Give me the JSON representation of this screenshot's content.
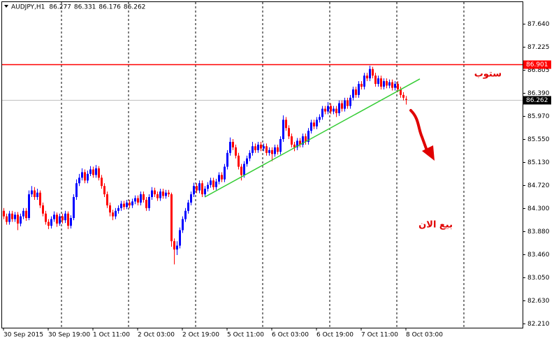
{
  "chart_data": {
    "type": "candlestick",
    "title": "AUDJPY,H1",
    "categories": [
      "30 Sep 2015",
      null,
      null,
      null,
      null,
      null,
      null,
      null,
      null,
      null,
      null,
      null,
      null,
      null,
      null,
      null,
      "30 Sep 19:00",
      null,
      null,
      null,
      null,
      null,
      null,
      null,
      null,
      null,
      null,
      null,
      null,
      null,
      null,
      null,
      "1 Oct 11:00",
      null,
      null,
      null,
      null,
      null,
      null,
      null,
      null,
      null,
      null,
      null,
      null,
      null,
      null,
      null,
      "2 Oct 03:00",
      null,
      null,
      null,
      null,
      null,
      null,
      null,
      null,
      null,
      null,
      null,
      null,
      null,
      null,
      null,
      "2 Oct 19:00",
      null,
      null,
      null,
      null,
      null,
      null,
      null,
      null,
      null,
      null,
      null,
      null,
      null,
      null,
      null,
      "5 Oct 11:00",
      null,
      null,
      null,
      null,
      null,
      null,
      null,
      null,
      null,
      null,
      null,
      null,
      null,
      null,
      null,
      "6 Oct 03:00",
      null,
      null,
      null,
      null,
      null,
      null,
      null,
      null,
      null,
      null,
      null,
      null,
      null,
      null,
      null,
      "6 Oct 19:00",
      null,
      null,
      null,
      null,
      null,
      null,
      null,
      null,
      null,
      null,
      null,
      null,
      null,
      null,
      null,
      "7 Oct 11:00",
      null,
      null,
      null,
      null,
      null,
      null,
      null,
      null,
      null,
      null,
      null,
      null,
      null,
      null,
      null,
      "8 Oct 03:00"
    ],
    "open": [
      84.25,
      84.15,
      84.05,
      84.2,
      84.1,
      84.18,
      84.02,
      84.15,
      84.25,
      84.12,
      84.55,
      84.62,
      84.5,
      84.58,
      84.35,
      84.2,
      84.05,
      83.98,
      84.1,
      84.18,
      84.02,
      84.15,
      84.08,
      84.2,
      83.98,
      84.12,
      84.5,
      84.75,
      84.85,
      84.95,
      84.8,
      84.92,
      85.0,
      84.9,
      85.02,
      84.85,
      84.7,
      84.55,
      84.35,
      84.22,
      84.15,
      84.25,
      84.3,
      84.38,
      84.32,
      84.4,
      84.35,
      84.42,
      84.48,
      84.4,
      84.55,
      84.45,
      84.3,
      84.5,
      84.62,
      84.55,
      84.48,
      84.6,
      84.52,
      84.58,
      84.55,
      83.7,
      83.55,
      83.62,
      83.9,
      84.1,
      84.25,
      84.4,
      84.55,
      84.7,
      84.62,
      84.75,
      84.55,
      84.65,
      84.72,
      84.8,
      84.68,
      84.78,
      84.9,
      84.82,
      85.05,
      85.3,
      85.5,
      85.4,
      85.25,
      85.05,
      84.9,
      85.1,
      85.2,
      85.3,
      85.42,
      85.35,
      85.45,
      85.38,
      85.42,
      85.3,
      85.35,
      85.28,
      85.4,
      85.32,
      85.55,
      85.9,
      85.75,
      85.6,
      85.45,
      85.4,
      85.52,
      85.45,
      85.6,
      85.5,
      85.7,
      85.85,
      85.78,
      85.9,
      85.95,
      86.1,
      86.05,
      86.15,
      86.05,
      86.1,
      86.02,
      86.2,
      86.1,
      86.25,
      86.15,
      86.3,
      86.45,
      86.35,
      86.55,
      86.5,
      86.7,
      86.65,
      86.82,
      86.7,
      86.55,
      86.65,
      86.5,
      86.6,
      86.52,
      86.58,
      86.48,
      86.55,
      86.45,
      86.35,
      86.277
    ],
    "high": [
      84.3,
      84.2,
      84.25,
      84.25,
      84.23,
      84.23,
      84.2,
      84.3,
      84.3,
      84.62,
      84.7,
      84.68,
      84.65,
      84.62,
      84.4,
      84.25,
      84.1,
      84.15,
      84.24,
      84.22,
      84.2,
      84.2,
      84.25,
      84.24,
      84.17,
      84.55,
      84.82,
      84.92,
      85.02,
      85.0,
      84.98,
      85.06,
      85.05,
      85.08,
      85.06,
      84.9,
      84.75,
      84.6,
      84.4,
      84.27,
      84.3,
      84.35,
      84.43,
      84.43,
      84.45,
      84.45,
      84.47,
      84.53,
      84.53,
      84.6,
      84.6,
      84.5,
      84.55,
      84.68,
      84.67,
      84.6,
      84.65,
      84.65,
      84.63,
      84.63,
      84.58,
      83.75,
      83.7,
      83.95,
      84.15,
      84.3,
      84.45,
      84.6,
      84.76,
      84.75,
      84.8,
      84.8,
      84.7,
      84.77,
      84.85,
      84.85,
      84.83,
      84.95,
      84.95,
      85.1,
      85.35,
      85.58,
      85.55,
      85.45,
      85.3,
      85.1,
      85.15,
      85.25,
      85.35,
      85.5,
      85.47,
      85.5,
      85.5,
      85.47,
      85.47,
      85.4,
      85.4,
      85.45,
      85.45,
      85.6,
      85.98,
      85.95,
      85.8,
      85.65,
      85.5,
      85.57,
      85.57,
      85.65,
      85.65,
      85.75,
      85.9,
      85.9,
      85.95,
      86.0,
      86.15,
      86.15,
      86.22,
      86.2,
      86.15,
      86.15,
      86.25,
      86.25,
      86.3,
      86.3,
      86.35,
      86.5,
      86.5,
      86.6,
      86.6,
      86.75,
      86.75,
      86.88,
      86.86,
      86.75,
      86.7,
      86.7,
      86.65,
      86.65,
      86.63,
      86.63,
      86.6,
      86.6,
      86.5,
      86.4,
      86.331
    ],
    "low": [
      84.1,
      84.0,
      84.0,
      84.05,
      84.05,
      83.9,
      83.97,
      84.1,
      84.07,
      84.08,
      84.5,
      84.45,
      84.45,
      84.3,
      84.15,
      84.0,
      83.92,
      83.93,
      84.05,
      83.96,
      83.98,
      84.02,
      84.03,
      83.92,
      83.93,
      84.08,
      84.45,
      84.7,
      84.8,
      84.75,
      84.75,
      84.88,
      84.85,
      84.85,
      84.8,
      84.65,
      84.5,
      84.3,
      84.15,
      84.08,
      84.1,
      84.2,
      84.25,
      84.27,
      84.28,
      84.3,
      84.3,
      84.37,
      84.35,
      84.35,
      84.4,
      84.25,
      84.25,
      84.45,
      84.5,
      84.43,
      84.43,
      84.47,
      84.47,
      84.5,
      83.6,
      83.28,
      83.45,
      83.57,
      83.85,
      84.05,
      84.2,
      84.35,
      84.5,
      84.57,
      84.57,
      84.5,
      84.5,
      84.6,
      84.67,
      84.63,
      84.63,
      84.73,
      84.77,
      84.77,
      85.0,
      85.25,
      85.35,
      85.2,
      85.0,
      84.8,
      84.85,
      85.05,
      85.15,
      85.25,
      85.3,
      85.3,
      85.33,
      85.33,
      85.25,
      85.25,
      85.15,
      85.23,
      85.27,
      85.27,
      85.5,
      85.7,
      85.55,
      85.4,
      85.33,
      85.35,
      85.4,
      85.4,
      85.45,
      85.45,
      85.65,
      85.73,
      85.73,
      85.85,
      85.9,
      86.0,
      86.0,
      86.0,
      86.0,
      85.95,
      85.97,
      86.05,
      86.05,
      86.1,
      86.1,
      86.25,
      86.3,
      86.3,
      86.45,
      86.45,
      86.6,
      86.6,
      86.65,
      86.5,
      86.5,
      86.45,
      86.45,
      86.47,
      86.47,
      86.43,
      86.43,
      86.4,
      86.3,
      86.25,
      86.176
    ],
    "close": [
      84.15,
      84.05,
      84.2,
      84.1,
      84.18,
      84.02,
      84.15,
      84.25,
      84.12,
      84.55,
      84.62,
      84.5,
      84.58,
      84.35,
      84.2,
      84.05,
      83.98,
      84.1,
      84.18,
      84.02,
      84.15,
      84.08,
      84.2,
      83.98,
      84.12,
      84.5,
      84.75,
      84.85,
      84.95,
      84.8,
      84.92,
      85.0,
      84.9,
      85.02,
      84.85,
      84.7,
      84.55,
      84.35,
      84.22,
      84.15,
      84.25,
      84.3,
      84.38,
      84.32,
      84.4,
      84.35,
      84.42,
      84.48,
      84.4,
      84.55,
      84.45,
      84.3,
      84.5,
      84.62,
      84.55,
      84.48,
      84.6,
      84.52,
      84.58,
      84.55,
      83.7,
      83.55,
      83.62,
      83.9,
      84.1,
      84.25,
      84.4,
      84.55,
      84.7,
      84.62,
      84.75,
      84.55,
      84.65,
      84.72,
      84.8,
      84.68,
      84.78,
      84.9,
      84.82,
      85.05,
      85.3,
      85.5,
      85.4,
      85.25,
      85.05,
      84.9,
      85.1,
      85.2,
      85.3,
      85.42,
      85.35,
      85.45,
      85.38,
      85.42,
      85.3,
      85.35,
      85.28,
      85.4,
      85.32,
      85.55,
      85.9,
      85.75,
      85.6,
      85.45,
      85.4,
      85.52,
      85.45,
      85.6,
      85.5,
      85.7,
      85.85,
      85.78,
      85.9,
      85.95,
      86.1,
      86.05,
      86.15,
      86.05,
      86.1,
      86.02,
      86.2,
      86.1,
      86.25,
      86.15,
      86.3,
      86.45,
      86.35,
      86.55,
      86.5,
      86.7,
      86.65,
      86.82,
      86.7,
      86.55,
      86.65,
      86.5,
      86.6,
      86.52,
      86.58,
      86.48,
      86.55,
      86.45,
      86.35,
      86.3,
      86.262
    ],
    "up_color": "#0000ff",
    "down_color": "#ff0000",
    "ylim": [
      82.12,
      88.07
    ],
    "yticks": [
      {
        "value": 87.64,
        "label": "87.640"
      },
      87.225,
      86.805,
      {
        "value": 86.39,
        "label": "86.390"
      },
      {
        "value": 85.97,
        "label": "85.970"
      },
      {
        "value": 85.55,
        "label": "85.550"
      },
      {
        "value": 85.13,
        "label": "85.130"
      },
      {
        "value": 84.72,
        "label": "84.720"
      },
      {
        "value": 84.3,
        "label": "84.300"
      },
      {
        "value": 83.88,
        "label": "83.880"
      },
      {
        "value": 83.46,
        "label": "83.460"
      },
      {
        "value": 83.05,
        "label": "83.050"
      },
      {
        "value": 82.63,
        "label": "82.630"
      },
      {
        "value": 82.21,
        "label": "82.210"
      }
    ],
    "hlines": [
      {
        "value": 86.901,
        "color": "#ff0000",
        "label_bg": "#ff0000"
      },
      {
        "value": 86.262,
        "color": "#c0c0c0",
        "label_bg": "#000000"
      }
    ],
    "trendline": {
      "color": "#33cc33",
      "start": [
        72,
        84.5
      ],
      "end": [
        149,
        86.64
      ]
    },
    "annotations": [
      "ستوب",
      "بيع الان"
    ]
  }
}
